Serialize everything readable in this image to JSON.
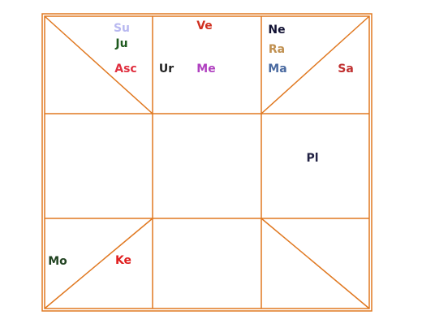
{
  "planets": [
    {
      "label": "Su",
      "color": "#b8b8f0"
    },
    {
      "label": "Ju",
      "color": "#1e5a1e"
    },
    {
      "label": "Asc",
      "color": "#e03040"
    },
    {
      "label": "Ve",
      "color": "#d03020"
    },
    {
      "label": "Ur",
      "color": "#222222"
    },
    {
      "label": "Me",
      "color": "#b040c0"
    },
    {
      "label": "Ne",
      "color": "#111133"
    },
    {
      "label": "Ra",
      "color": "#c09050"
    },
    {
      "label": "Ma",
      "color": "#4a6aa0"
    },
    {
      "label": "Sa",
      "color": "#c03030"
    },
    {
      "label": "Pl",
      "color": "#222244"
    },
    {
      "label": "Mo",
      "color": "#224422"
    },
    {
      "label": "Ke",
      "color": "#e02020"
    }
  ]
}
